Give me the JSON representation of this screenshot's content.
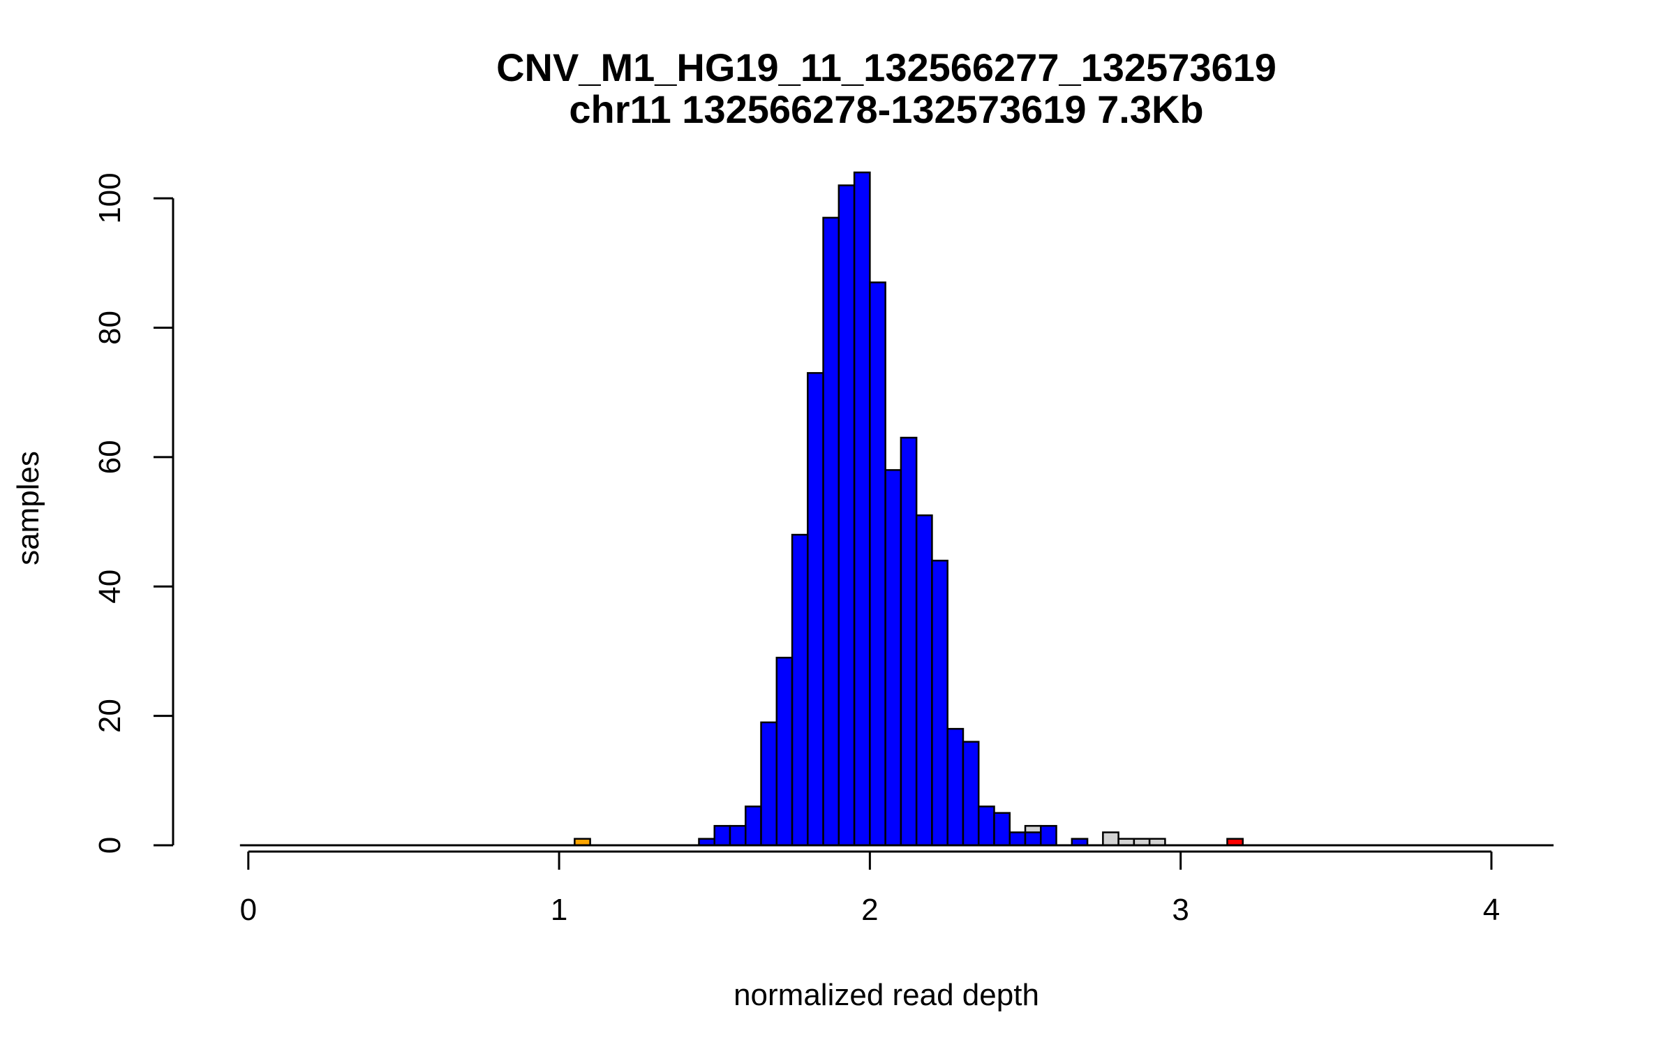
{
  "chart_data": {
    "type": "bar",
    "title": "CNV_M1_HG19_11_132566277_132573619",
    "subtitle": "chr11 132566278-132573619 7.3Kb",
    "xlabel": "normalized read depth",
    "ylabel": "samples",
    "xlim": [
      -0.04,
      4.2
    ],
    "ylim": [
      0,
      104
    ],
    "x_axis_range": [
      0,
      4.2
    ],
    "x_ticks": [
      0,
      1,
      2,
      3,
      4
    ],
    "y_ticks": [
      0,
      20,
      40,
      60,
      80,
      100
    ],
    "y_axis_range": [
      0,
      100
    ],
    "bin_width": 0.05,
    "bar_outline": "#000000",
    "colors": {
      "normal": "#0000ff",
      "grey": "#d3d3d3",
      "orange": "#ffa500",
      "red": "#ff0000"
    },
    "bins": [
      {
        "x0": 1.05,
        "value": 1,
        "color": "orange"
      },
      {
        "x0": 1.45,
        "value": 1,
        "color": "normal"
      },
      {
        "x0": 1.5,
        "value": 3,
        "color": "normal"
      },
      {
        "x0": 1.55,
        "value": 3,
        "color": "normal"
      },
      {
        "x0": 1.6,
        "value": 6,
        "color": "normal"
      },
      {
        "x0": 1.65,
        "value": 19,
        "color": "normal"
      },
      {
        "x0": 1.7,
        "value": 29,
        "color": "normal"
      },
      {
        "x0": 1.75,
        "value": 48,
        "color": "normal"
      },
      {
        "x0": 1.8,
        "value": 73,
        "color": "normal"
      },
      {
        "x0": 1.85,
        "value": 97,
        "color": "normal"
      },
      {
        "x0": 1.9,
        "value": 102,
        "color": "normal"
      },
      {
        "x0": 1.95,
        "value": 104,
        "color": "normal"
      },
      {
        "x0": 2.0,
        "value": 87,
        "color": "normal"
      },
      {
        "x0": 2.05,
        "value": 58,
        "color": "normal"
      },
      {
        "x0": 2.1,
        "value": 63,
        "color": "normal"
      },
      {
        "x0": 2.15,
        "value": 51,
        "color": "normal"
      },
      {
        "x0": 2.2,
        "value": 44,
        "color": "normal"
      },
      {
        "x0": 2.25,
        "value": 18,
        "color": "normal"
      },
      {
        "x0": 2.3,
        "value": 16,
        "color": "normal"
      },
      {
        "x0": 2.35,
        "value": 6,
        "color": "normal"
      },
      {
        "x0": 2.4,
        "value": 5,
        "color": "normal"
      },
      {
        "x0": 2.45,
        "value": 2,
        "color": "normal"
      },
      {
        "x0": 2.5,
        "value": 3,
        "color": "grey",
        "stack_below": 2,
        "stack_below_color": "normal"
      },
      {
        "x0": 2.55,
        "value": 3,
        "color": "normal"
      },
      {
        "x0": 2.65,
        "value": 1,
        "color": "normal"
      },
      {
        "x0": 2.75,
        "value": 2,
        "color": "grey"
      },
      {
        "x0": 2.8,
        "value": 1,
        "color": "grey"
      },
      {
        "x0": 2.85,
        "value": 1,
        "color": "grey"
      },
      {
        "x0": 2.9,
        "value": 1,
        "color": "grey"
      },
      {
        "x0": 3.15,
        "value": 1,
        "color": "red"
      }
    ]
  }
}
